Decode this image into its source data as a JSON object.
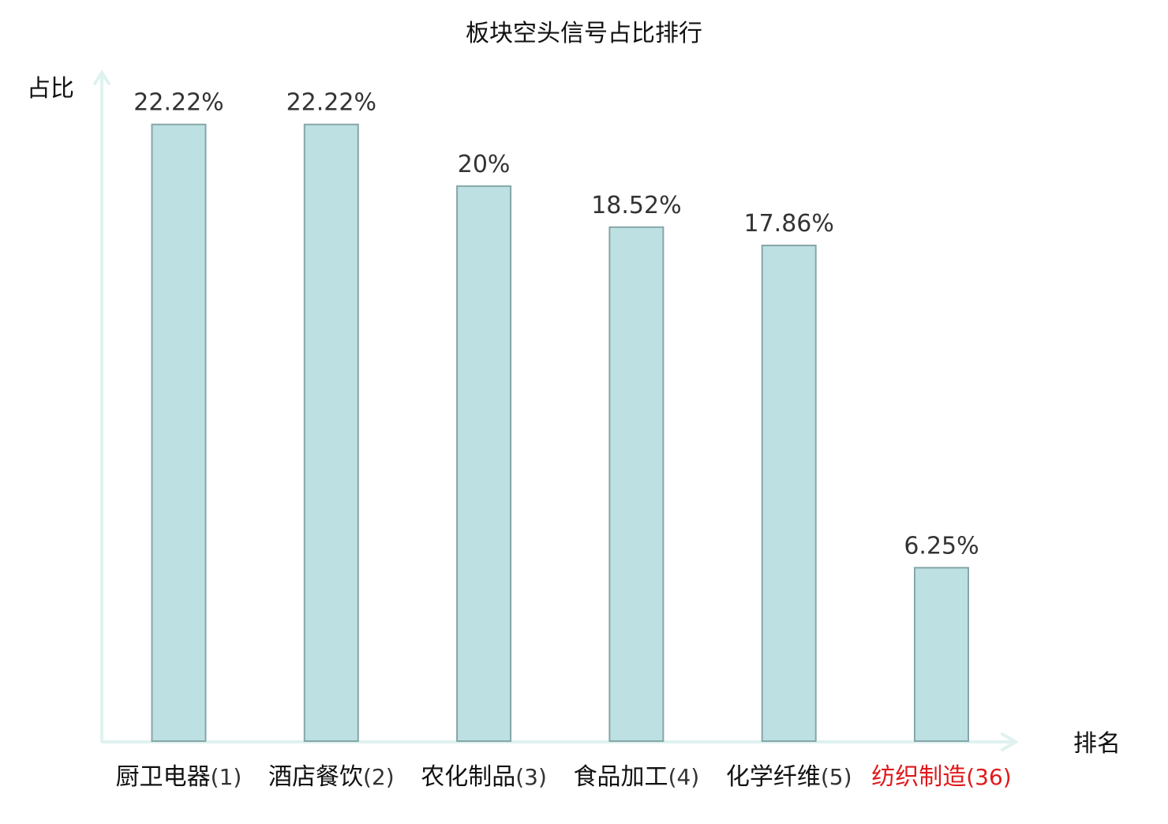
{
  "chart_data": {
    "type": "bar",
    "title": "板块空头信号占比排行",
    "ylabel": "占比",
    "xlabel": "排名",
    "categories": [
      {
        "name": "厨卫电器",
        "rank": "(1)"
      },
      {
        "name": "酒店餐饮",
        "rank": "(2)"
      },
      {
        "name": "农化制品",
        "rank": "(3)"
      },
      {
        "name": "食品加工",
        "rank": "(4)"
      },
      {
        "name": "化学纤维",
        "rank": "(5)"
      },
      {
        "name": "纺织制造",
        "rank": "(36)",
        "highlight": true
      }
    ],
    "values": [
      22.22,
      22.22,
      20,
      18.52,
      17.86,
      6.25
    ],
    "value_labels": [
      "22.22%",
      "22.22%",
      "20%",
      "18.52%",
      "17.86%",
      "6.25%"
    ],
    "ylim": [
      0,
      25
    ],
    "grid": false,
    "legend": "none"
  },
  "colors": {
    "bar_fill": "#bde0e2",
    "bar_stroke": "#86a6a9",
    "axis": "#dff2ef",
    "text": "#333333",
    "label_text": "#111111",
    "highlight": "#e0191b"
  }
}
